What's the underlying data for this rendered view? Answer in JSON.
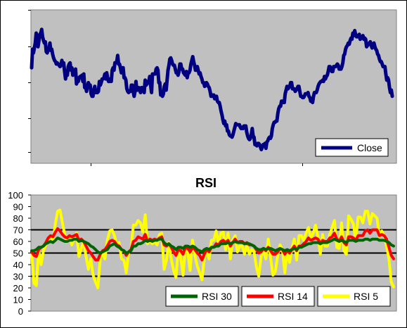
{
  "colors": {
    "plot_bg": "#c0c0c0",
    "close_line": "#000080",
    "rsi30": "#006400",
    "rsi14": "#ff0000",
    "rsi5": "#ffff00",
    "threshold_line": "#000000"
  },
  "chart_data": [
    {
      "type": "line",
      "title": "",
      "xlabel": "",
      "ylabel": "",
      "ylim": [
        0,
        100
      ],
      "grid": false,
      "legend": "bottom-right",
      "series": [
        {
          "name": "Close",
          "values": [
            68,
            83,
            80,
            84,
            88,
            96,
            91,
            85,
            90,
            95,
            96,
            99,
            93,
            90,
            88,
            89,
            81,
            80,
            82,
            83,
            88,
            82,
            83,
            79,
            76,
            74,
            73,
            71,
            72,
            71,
            70,
            69,
            70,
            74,
            70,
            72,
            65,
            59,
            63,
            62,
            69,
            71,
            72,
            66,
            68,
            62,
            64,
            66,
            67,
            55,
            57,
            57,
            60,
            61,
            61,
            62,
            57,
            63,
            52,
            53,
            49,
            53,
            56,
            54,
            54,
            47,
            45,
            45,
            50,
            53,
            48,
            48,
            48,
            49,
            57,
            54,
            56,
            59,
            59,
            60,
            63,
            59,
            64,
            60,
            57,
            57,
            59,
            57,
            66,
            68,
            66,
            72,
            72,
            73,
            78,
            71,
            71,
            68,
            64,
            68,
            68,
            60,
            60,
            58,
            51,
            49,
            48,
            49,
            49,
            54,
            54,
            49,
            45,
            49,
            57,
            50,
            50,
            52,
            51,
            48,
            52,
            52,
            50,
            48,
            58,
            54,
            55,
            57,
            57,
            61,
            54,
            48,
            63,
            63,
            63,
            63,
            67,
            68,
            66,
            56,
            56,
            46,
            47,
            45,
            47,
            53,
            55,
            50,
            58,
            66,
            70,
            75,
            76,
            74,
            71,
            70,
            70,
            67,
            64,
            64,
            62,
            65,
            71,
            71,
            67,
            67,
            64,
            63,
            62,
            65,
            60,
            64,
            64,
            66,
            71,
            74,
            77,
            73,
            70,
            66,
            66,
            69,
            66,
            63,
            64,
            61,
            59,
            56,
            56,
            53,
            54,
            56,
            55,
            53,
            52,
            49,
            45,
            45,
            46,
            46,
            43,
            44,
            45,
            41,
            40,
            40,
            37,
            33,
            30,
            26,
            23,
            25,
            21,
            22,
            17,
            17,
            14,
            13,
            13,
            12,
            14,
            17,
            20,
            23,
            22,
            22,
            22,
            22,
            20,
            19,
            20,
            19,
            21,
            21,
            21,
            16,
            13,
            11,
            10,
            11,
            14,
            19,
            13,
            12,
            6,
            6,
            5,
            7,
            7,
            6,
            4,
            2,
            4,
            6,
            5,
            7,
            3,
            8,
            9,
            11,
            12,
            11,
            13,
            19,
            22,
            24,
            24,
            25,
            25,
            31,
            35,
            37,
            37,
            41,
            41,
            40,
            40,
            47,
            50,
            53,
            51,
            52,
            53,
            56,
            56,
            51,
            51,
            51,
            49,
            50,
            51,
            53,
            53,
            49,
            45,
            45,
            44,
            44,
            45,
            47,
            47,
            47,
            48,
            45,
            44,
            41,
            41,
            40,
            45,
            48,
            48,
            48,
            50,
            53,
            55,
            56,
            57,
            57,
            58,
            57,
            61,
            59,
            61,
            62,
            65,
            69,
            69,
            66,
            65,
            65,
            69,
            69,
            69,
            70,
            71,
            70,
            67,
            67,
            67,
            69,
            72,
            78,
            79,
            83,
            85,
            86,
            88,
            87,
            90,
            92,
            91,
            96,
            94,
            98,
            95,
            93,
            93,
            94,
            95,
            91,
            92,
            93,
            94,
            91,
            92,
            91,
            85,
            86,
            87,
            88,
            89,
            86,
            84,
            86,
            88,
            85,
            83,
            82,
            79,
            78,
            75,
            73,
            73,
            71,
            69,
            69,
            69,
            63,
            58,
            60,
            58,
            52,
            48,
            50,
            45
          ]
        }
      ]
    },
    {
      "type": "line",
      "title": "RSI",
      "xlabel": "",
      "ylabel": "",
      "ylim": [
        0,
        100
      ],
      "yticks": [
        "0",
        "10",
        "20",
        "30",
        "40",
        "50",
        "60",
        "70",
        "80",
        "90",
        "100"
      ],
      "reference_lines": [
        30,
        50,
        70
      ],
      "grid": false,
      "legend": "bottom-right",
      "series": [
        {
          "name": "RSI 30",
          "values": [
            52,
            52,
            53,
            55,
            55,
            56,
            58,
            59,
            60,
            59,
            61,
            63,
            62,
            61,
            60,
            60,
            61,
            61,
            62,
            62,
            60,
            61,
            60,
            59,
            58,
            56,
            55,
            53,
            51,
            50,
            51,
            52,
            53,
            56,
            57,
            58,
            56,
            55,
            53,
            52,
            50,
            51,
            52,
            56,
            56,
            58,
            58,
            59,
            61,
            60,
            61,
            60,
            61,
            61,
            62,
            62,
            59,
            57,
            58,
            56,
            55,
            53,
            55,
            55,
            54,
            56,
            56,
            55,
            56,
            55,
            53,
            52,
            51,
            53,
            54,
            53,
            55,
            55,
            56,
            56,
            58,
            58,
            58,
            59,
            58,
            59,
            60,
            59,
            59,
            59,
            58,
            58,
            58,
            57,
            56,
            54,
            53,
            53,
            54,
            53,
            54,
            54,
            53,
            52,
            53,
            54,
            53,
            52,
            53,
            52,
            53,
            54,
            53,
            55,
            55,
            56,
            57,
            58,
            58,
            59,
            59,
            59,
            58,
            59,
            59,
            59,
            60,
            61,
            62,
            61,
            60,
            61,
            60,
            59,
            61,
            61,
            61,
            60,
            61,
            61,
            61,
            62,
            62,
            61,
            62,
            62,
            62,
            61,
            61,
            61,
            60,
            59,
            57,
            56
          ]
        },
        {
          "name": "RSI 14",
          "values": [
            51,
            48,
            47,
            53,
            55,
            56,
            59,
            63,
            65,
            64,
            68,
            71,
            69,
            66,
            64,
            63,
            65,
            64,
            65,
            66,
            61,
            62,
            60,
            56,
            52,
            50,
            47,
            44,
            44,
            49,
            52,
            53,
            56,
            60,
            61,
            60,
            57,
            56,
            53,
            52,
            48,
            51,
            53,
            60,
            61,
            64,
            63,
            62,
            66,
            60,
            62,
            61,
            62,
            61,
            63,
            64,
            57,
            56,
            58,
            55,
            51,
            48,
            53,
            52,
            49,
            55,
            54,
            51,
            55,
            53,
            50,
            48,
            44,
            49,
            53,
            51,
            55,
            55,
            58,
            57,
            60,
            61,
            59,
            61,
            56,
            59,
            62,
            59,
            60,
            60,
            58,
            59,
            57,
            57,
            56,
            53,
            50,
            51,
            54,
            52,
            55,
            52,
            49,
            49,
            51,
            54,
            53,
            49,
            52,
            50,
            53,
            56,
            52,
            56,
            56,
            58,
            60,
            63,
            61,
            62,
            63,
            62,
            58,
            61,
            60,
            60,
            63,
            64,
            67,
            62,
            60,
            64,
            59,
            57,
            64,
            64,
            63,
            61,
            65,
            65,
            65,
            69,
            70,
            67,
            70,
            70,
            70,
            65,
            66,
            65,
            62,
            55,
            48,
            45
          ]
        },
        {
          "name": "RSI 5",
          "values": [
            51,
            24,
            22,
            53,
            40,
            52,
            57,
            62,
            65,
            60,
            75,
            86,
            87,
            76,
            66,
            60,
            65,
            57,
            63,
            67,
            47,
            54,
            60,
            47,
            36,
            45,
            31,
            25,
            20,
            45,
            51,
            45,
            61,
            69,
            70,
            65,
            57,
            59,
            45,
            44,
            33,
            51,
            53,
            74,
            74,
            78,
            76,
            68,
            83,
            58,
            61,
            58,
            60,
            57,
            66,
            67,
            36,
            44,
            59,
            45,
            35,
            29,
            53,
            46,
            31,
            56,
            50,
            35,
            61,
            48,
            39,
            33,
            27,
            46,
            53,
            45,
            61,
            61,
            69,
            58,
            67,
            68,
            53,
            67,
            45,
            61,
            65,
            51,
            56,
            56,
            49,
            57,
            49,
            53,
            51,
            38,
            30,
            47,
            53,
            45,
            62,
            46,
            31,
            34,
            48,
            57,
            53,
            33,
            52,
            42,
            54,
            62,
            44,
            65,
            65,
            61,
            67,
            72,
            63,
            67,
            74,
            64,
            49,
            66,
            56,
            56,
            66,
            72,
            78,
            55,
            54,
            76,
            52,
            49,
            82,
            79,
            75,
            60,
            81,
            81,
            76,
            86,
            86,
            75,
            84,
            82,
            80,
            64,
            69,
            65,
            56,
            45,
            25,
            21
          ]
        }
      ]
    }
  ]
}
